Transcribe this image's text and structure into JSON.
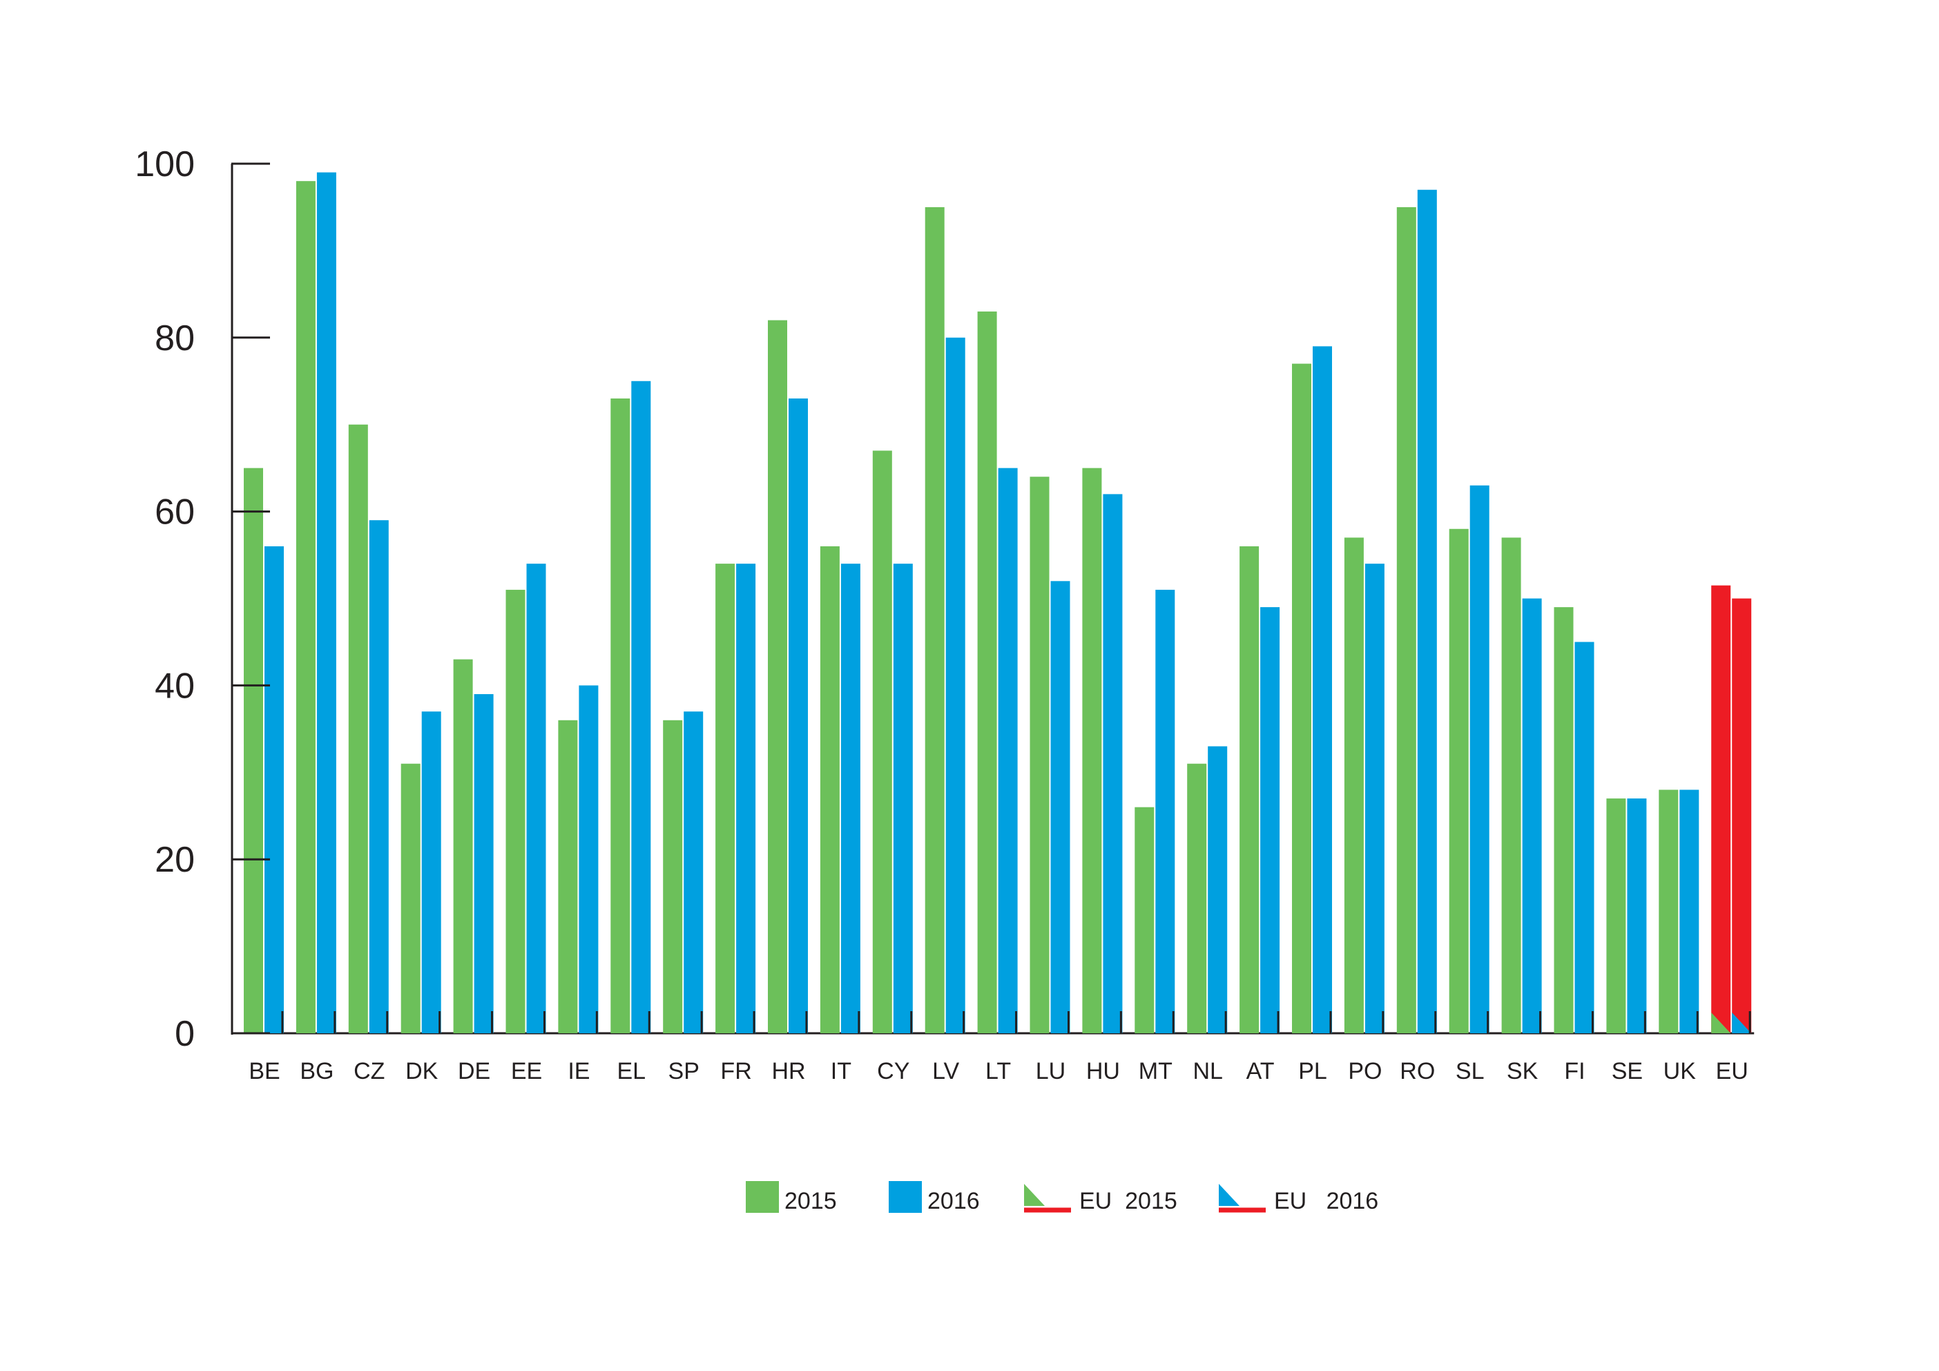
{
  "chart_data": {
    "type": "bar",
    "title": "",
    "xlabel": "",
    "ylabel": "",
    "ylim": [
      0,
      100
    ],
    "yticks": [
      0,
      20,
      40,
      60,
      80,
      100
    ],
    "grid": false,
    "legend_position": "bottom",
    "categories": [
      "BE",
      "BG",
      "CZ",
      "DK",
      "DE",
      "EE",
      "IE",
      "EL",
      "SP",
      "FR",
      "HR",
      "IT",
      "CY",
      "LV",
      "LT",
      "LU",
      "HU",
      "MT",
      "NL",
      "AT",
      "PL",
      "PO",
      "RO",
      "SL",
      "SK",
      "FI",
      "SE",
      "UK",
      "EU"
    ],
    "series": [
      {
        "name": "2015",
        "color": "#6cc05a",
        "values": [
          65,
          98,
          70,
          31,
          43,
          51,
          36,
          73,
          36,
          54,
          82,
          56,
          67,
          95,
          83,
          64,
          65,
          26,
          31,
          56,
          77,
          57,
          95,
          58,
          57,
          49,
          27,
          28,
          51.5
        ]
      },
      {
        "name": "2016",
        "color": "#00a0e0",
        "values": [
          56,
          99,
          59,
          37,
          39,
          54,
          40,
          75,
          37,
          54,
          73,
          54,
          54,
          80,
          65,
          52,
          62,
          51,
          33,
          49,
          79,
          54,
          97,
          63,
          50,
          45,
          27,
          28,
          50
        ]
      }
    ],
    "highlight": {
      "category": "EU",
      "color": "#ed1c24"
    },
    "legend": [
      {
        "label": "2015",
        "icon": "green-square",
        "color": "#6cc05a"
      },
      {
        "label": "2016",
        "icon": "blue-square",
        "color": "#00a0e0"
      },
      {
        "label": "EU  2015",
        "icon": "green-triangle-red-line",
        "color": "#6cc05a"
      },
      {
        "label": "EU   2016",
        "icon": "blue-triangle-red-line",
        "color": "#00a0e0"
      }
    ]
  }
}
